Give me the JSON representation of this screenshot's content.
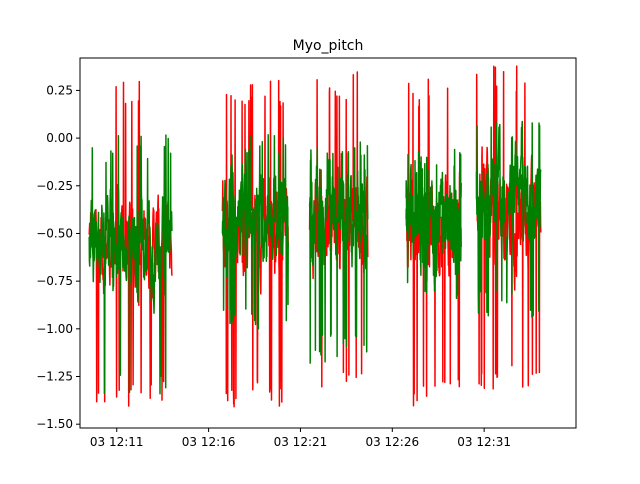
{
  "chart_data": {
    "type": "line",
    "title": "Myo_pitch",
    "xlabel": "",
    "ylabel": "",
    "x_axis": {
      "type": "time",
      "range": [
        "12:09",
        "12:36"
      ],
      "ticks": [
        {
          "label": "03 12:11",
          "minute": 131
        },
        {
          "label": "03 12:16",
          "minute": 136
        },
        {
          "label": "03 12:21",
          "minute": 141
        },
        {
          "label": "03 12:26",
          "minute": 146
        },
        {
          "label": "03 12:31",
          "minute": 151
        }
      ]
    },
    "y_axis": {
      "range": [
        -1.52,
        0.42
      ],
      "ticks": [
        0.25,
        0.0,
        -0.25,
        -0.5,
        -0.75,
        -1.0,
        -1.25,
        -1.5
      ],
      "tick_labels": [
        "0.25",
        "0.00",
        "−0.25",
        "−0.50",
        "−0.75",
        "−1.00",
        "−1.25",
        "−1.50"
      ]
    },
    "grid": false,
    "legend": "none",
    "series": [
      {
        "color": "#ff0000",
        "segments": [
          {
            "start": "12:09:30",
            "end": "12:14:00",
            "base": -0.55,
            "min": -1.42,
            "max": 0.33
          },
          {
            "start": "12:16:45",
            "end": "12:20:20",
            "base": -0.45,
            "min": -1.41,
            "max": 0.31
          },
          {
            "start": "12:21:30",
            "end": "12:24:40",
            "base": -0.42,
            "min": -1.33,
            "max": 0.35
          },
          {
            "start": "12:26:45",
            "end": "12:29:45",
            "base": -0.5,
            "min": -1.41,
            "max": 0.31
          },
          {
            "start": "12:30:35",
            "end": "12:34:05",
            "base": -0.4,
            "min": -1.33,
            "max": 0.38
          }
        ]
      },
      {
        "color": "#008000",
        "segments": [
          {
            "start": "12:09:30",
            "end": "12:14:00",
            "base": -0.55,
            "min": -1.38,
            "max": 0.02
          },
          {
            "start": "12:16:45",
            "end": "12:20:20",
            "base": -0.42,
            "min": -1.0,
            "max": 0.07
          },
          {
            "start": "12:21:30",
            "end": "12:24:40",
            "base": -0.38,
            "min": -1.18,
            "max": 0.0
          },
          {
            "start": "12:26:45",
            "end": "12:29:45",
            "base": -0.45,
            "min": -0.85,
            "max": -0.05
          },
          {
            "start": "12:30:35",
            "end": "12:34:05",
            "base": -0.3,
            "min": -0.95,
            "max": 0.14
          }
        ]
      }
    ]
  }
}
